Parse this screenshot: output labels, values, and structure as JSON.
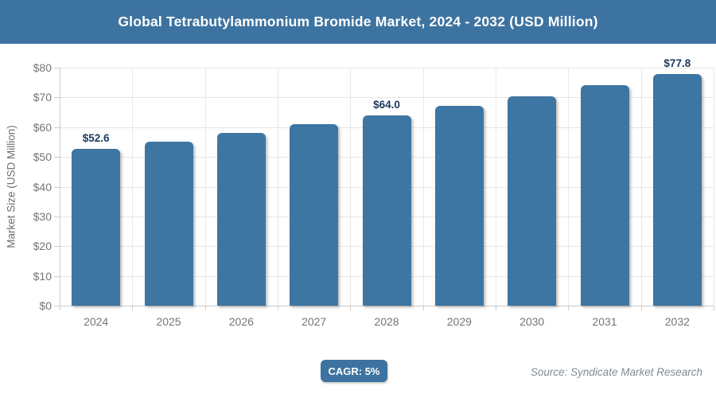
{
  "header": {
    "title": "Global Tetrabutylammonium Bromide Market, 2024 - 2032 (USD Million)",
    "bg_color": "#3d73a0"
  },
  "chart_data": {
    "type": "bar",
    "title": "Global Tetrabutylammonium Bromide Market, 2024 - 2032 (USD Million)",
    "categories": [
      "2024",
      "2025",
      "2026",
      "2027",
      "2028",
      "2029",
      "2030",
      "2031",
      "2032"
    ],
    "values": [
      52.6,
      55.2,
      58.0,
      60.9,
      64.0,
      67.2,
      70.5,
      74.1,
      77.8
    ],
    "point_labels": [
      {
        "index": 0,
        "text": "$52.6"
      },
      {
        "index": 4,
        "text": "$64.0"
      },
      {
        "index": 8,
        "text": "$77.8"
      }
    ],
    "xlabel": "",
    "ylabel": "Market Size (USD Million)",
    "ylim": [
      0,
      80
    ],
    "ytick_step": 10,
    "ytick_labels": [
      "$0",
      "$10",
      "$20",
      "$30",
      "$40",
      "$50",
      "$60",
      "$70",
      "$80"
    ],
    "grid": true,
    "bar_color": "#3e76a3",
    "value_label_color": "#1b3a5e"
  },
  "footer": {
    "cagr_label": "CAGR: 5%",
    "source": "Source: Syndicate Market Research"
  }
}
